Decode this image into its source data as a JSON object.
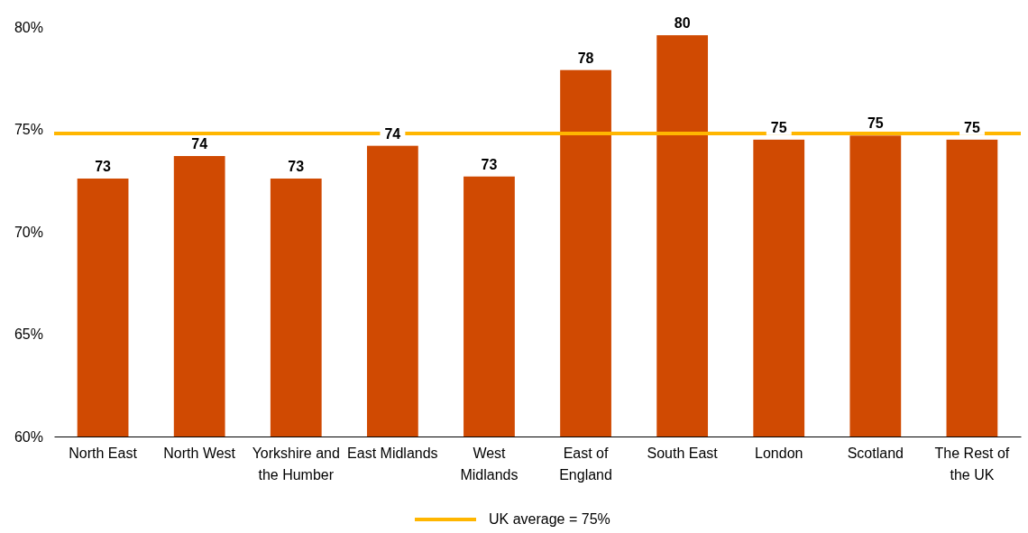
{
  "chart_data": {
    "type": "bar",
    "categories": [
      "North East",
      "North West",
      "Yorkshire and the Humber",
      "East Midlands",
      "West Midlands",
      "East of England",
      "South East",
      "London",
      "Scotland",
      "The Rest of the UK"
    ],
    "values": [
      72.6,
      73.7,
      72.6,
      74.2,
      72.7,
      77.9,
      79.6,
      74.5,
      74.7,
      74.5
    ],
    "value_labels": [
      "73",
      "74",
      "73",
      "74",
      "73",
      "78",
      "80",
      "75",
      "75",
      "75"
    ],
    "color": "#d04a02",
    "ylim": [
      60,
      80
    ],
    "yticks": [
      {
        "value": 60,
        "label": "60%"
      },
      {
        "value": 65,
        "label": "65%"
      },
      {
        "value": 70,
        "label": "70%"
      },
      {
        "value": 75,
        "label": "75%"
      },
      {
        "value": 80,
        "label": "80%"
      }
    ],
    "ref_lines": [
      {
        "axis": "y",
        "value": 74.8,
        "label": "UK average = 75%",
        "color": "#ffb600"
      }
    ],
    "grid": false,
    "legend": "bottom"
  }
}
